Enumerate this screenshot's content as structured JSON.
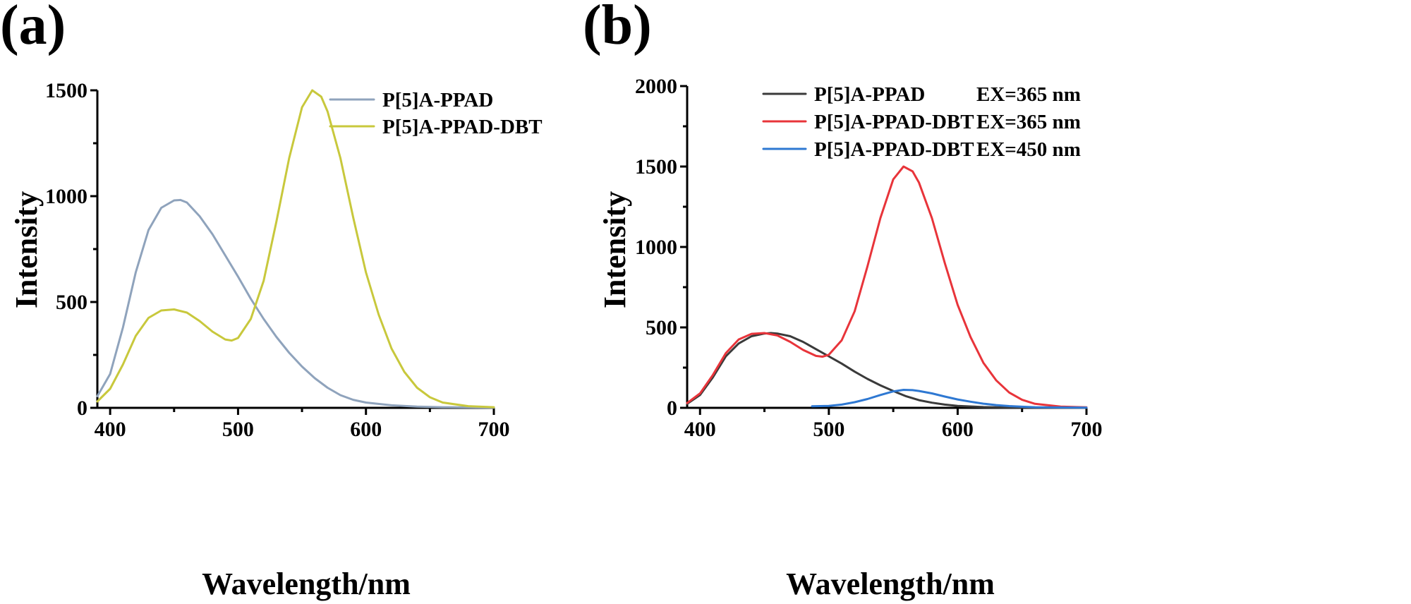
{
  "chart_data": [
    {
      "panel_label": "(a)",
      "type": "line",
      "xlabel": "Wavelength/nm",
      "ylabel": "Intensity",
      "xlim": [
        390,
        700
      ],
      "ylim": [
        0,
        1500
      ],
      "xticks": [
        400,
        500,
        600,
        700
      ],
      "yticks": [
        0,
        500,
        1000,
        1500
      ],
      "legend_position": "top-right",
      "series": [
        {
          "name": "P[5]A-PPAD",
          "color": "#8FA3BC",
          "x": [
            390,
            400,
            410,
            420,
            430,
            440,
            450,
            455,
            460,
            470,
            480,
            490,
            500,
            510,
            520,
            530,
            540,
            550,
            560,
            570,
            580,
            590,
            600,
            620,
            640,
            660,
            680,
            700
          ],
          "y": [
            55,
            160,
            380,
            640,
            840,
            945,
            980,
            982,
            970,
            905,
            820,
            720,
            620,
            515,
            420,
            335,
            260,
            195,
            140,
            95,
            60,
            38,
            25,
            12,
            6,
            3,
            2,
            1
          ]
        },
        {
          "name": "P[5]A-PPAD-DBT",
          "color": "#C8C83C",
          "x": [
            390,
            400,
            410,
            420,
            430,
            440,
            450,
            460,
            470,
            480,
            490,
            495,
            500,
            510,
            520,
            530,
            540,
            550,
            558,
            565,
            570,
            580,
            590,
            600,
            610,
            620,
            630,
            640,
            650,
            660,
            680,
            700
          ],
          "y": [
            30,
            90,
            205,
            340,
            425,
            460,
            465,
            450,
            410,
            360,
            323,
            318,
            330,
            420,
            600,
            880,
            1180,
            1420,
            1500,
            1470,
            1400,
            1180,
            900,
            640,
            440,
            280,
            170,
            95,
            50,
            25,
            8,
            3
          ]
        }
      ]
    },
    {
      "panel_label": "(b)",
      "type": "line",
      "xlabel": "Wavelength/nm",
      "ylabel": "Intensity",
      "xlim": [
        390,
        700
      ],
      "ylim": [
        0,
        2000
      ],
      "xticks": [
        400,
        500,
        600,
        700
      ],
      "yticks": [
        0,
        500,
        1000,
        1500,
        2000
      ],
      "legend_position": "top-right",
      "series": [
        {
          "name": "P[5]A-PPAD",
          "ex_label": "EX=365 nm",
          "color": "#3a3a3a",
          "x": [
            390,
            400,
            410,
            420,
            430,
            440,
            450,
            455,
            460,
            470,
            480,
            490,
            500,
            510,
            520,
            530,
            540,
            550,
            560,
            570,
            580,
            590,
            600,
            620,
            640,
            660,
            680,
            700
          ],
          "y": [
            25,
            80,
            190,
            320,
            400,
            445,
            462,
            465,
            462,
            445,
            410,
            365,
            320,
            275,
            225,
            180,
            140,
            105,
            72,
            48,
            32,
            20,
            12,
            5,
            2,
            1,
            0,
            0
          ]
        },
        {
          "name": "P[5]A-PPAD-DBT",
          "ex_label": "EX=365 nm",
          "color": "#E8343A",
          "x": [
            390,
            400,
            410,
            420,
            430,
            440,
            450,
            460,
            470,
            480,
            490,
            495,
            500,
            510,
            520,
            530,
            540,
            550,
            558,
            565,
            570,
            580,
            590,
            600,
            610,
            620,
            630,
            640,
            650,
            660,
            680,
            700
          ],
          "y": [
            30,
            90,
            205,
            340,
            425,
            460,
            465,
            450,
            410,
            360,
            323,
            318,
            330,
            420,
            600,
            880,
            1180,
            1420,
            1500,
            1470,
            1400,
            1180,
            900,
            640,
            440,
            280,
            170,
            95,
            50,
            25,
            8,
            3
          ]
        },
        {
          "name": "P[5]A-PPAD-DBT",
          "ex_label": "EX=450 nm",
          "color": "#2E78D2",
          "x": [
            487,
            500,
            510,
            520,
            530,
            540,
            550,
            558,
            565,
            570,
            580,
            590,
            600,
            610,
            620,
            630,
            640,
            650,
            660,
            680,
            700
          ],
          "y": [
            10,
            12,
            20,
            35,
            55,
            80,
            102,
            112,
            110,
            105,
            90,
            70,
            52,
            38,
            26,
            17,
            11,
            7,
            4,
            2,
            1
          ]
        }
      ]
    }
  ]
}
